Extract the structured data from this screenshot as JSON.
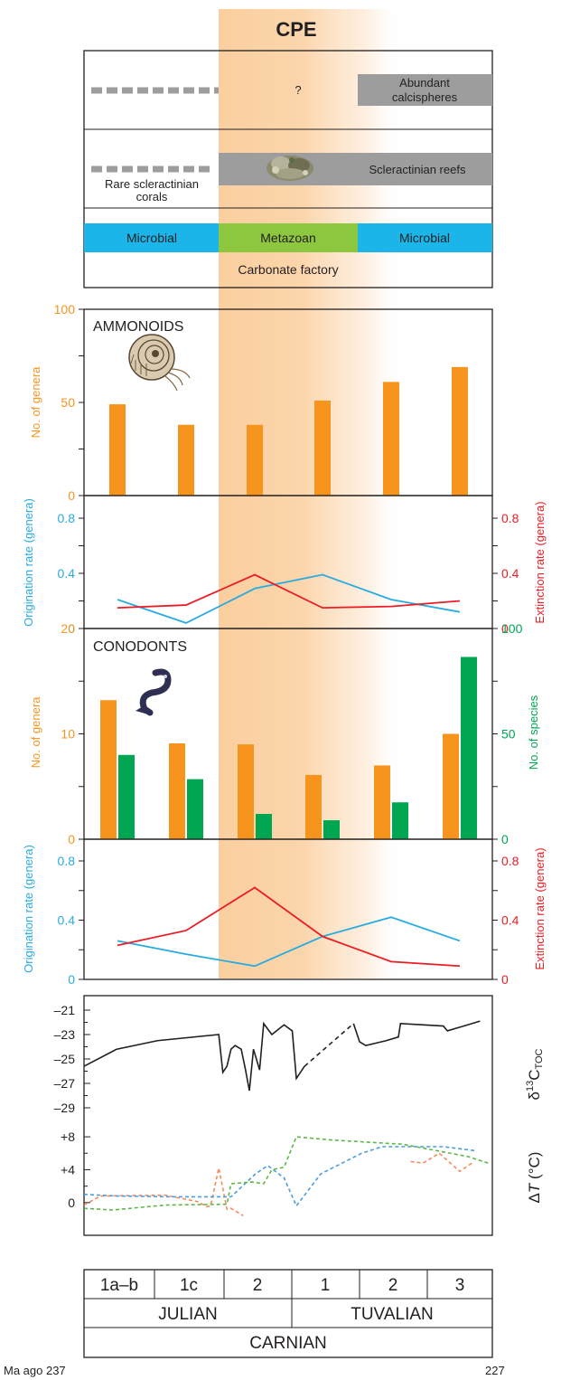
{
  "title": "CPE",
  "colors": {
    "orange": "#f7941d",
    "green": "#00a651",
    "blue": "#29abe2",
    "red": "#ed1c24",
    "black": "#231f20",
    "gray": "#9d9d9d",
    "microbial": "#1cb5ea",
    "metazoan": "#8dc63f",
    "cpe_band": "#fbd5ad",
    "temp_orange": "#f7895a",
    "temp_blue": "#4a9fe0",
    "temp_green": "#5cb847"
  },
  "legend_panel": {
    "calcispheres_question": "?",
    "calcispheres_label_1": "Abundant",
    "calcispheres_label_2": "calcispheres",
    "rare_corals_1": "Rare scleractinian",
    "rare_corals_2": "corals",
    "reefs_label": "Scleractinian reefs",
    "microbial_left": "Microbial",
    "metazoan": "Metazoan",
    "microbial_right": "Microbial",
    "carbonate_factory": "Carbonate factory"
  },
  "chart_data": [
    {
      "type": "bar",
      "title": "AMMONOIDS",
      "ylabel": "No. of genera",
      "ylim": [
        0,
        100
      ],
      "yticks": [
        0,
        50,
        100
      ],
      "categories": [
        "1a–b",
        "1c",
        "2",
        "1",
        "2",
        "3"
      ],
      "series": [
        {
          "values": [
            49,
            38,
            38,
            51,
            61,
            69
          ]
        }
      ]
    },
    {
      "type": "line",
      "ylabel_left": "Origination rate (genera)",
      "ylabel_right": "Extinction rate (genera)",
      "ylim": [
        0,
        0.8
      ],
      "yticks": [
        "0",
        "0.4",
        "0.8"
      ],
      "categories": [
        "1a–b",
        "1c",
        "2",
        "1",
        "2",
        "3"
      ],
      "series": [
        {
          "name": "Origination",
          "values": [
            0.21,
            0.04,
            0.29,
            0.39,
            0.21,
            0.12
          ]
        },
        {
          "name": "Extinction",
          "values": [
            0.15,
            0.17,
            0.39,
            0.15,
            0.16,
            0.2
          ]
        }
      ]
    },
    {
      "type": "bar",
      "title": "CONODONTS",
      "ylabel_left": "No. of genera",
      "ylabel_right": "No. of species",
      "ylim_left": [
        0,
        20
      ],
      "ylim_right": [
        0,
        100
      ],
      "yticks_left": [
        "0",
        "10",
        "20"
      ],
      "yticks_right": [
        "0",
        "50",
        "100"
      ],
      "categories": [
        "1a–b",
        "1c",
        "2",
        "1",
        "2",
        "3"
      ],
      "series": [
        {
          "name": "genera",
          "values": [
            13.2,
            9.1,
            9.0,
            6.1,
            7.0,
            10.0
          ]
        },
        {
          "name": "species",
          "values": [
            40,
            28.5,
            12,
            9,
            17.5,
            86.5
          ]
        }
      ]
    },
    {
      "type": "line",
      "ylabel_left": "Origination rate (genera)",
      "ylabel_right": "Extinction rate (genera)",
      "ylim": [
        0,
        0.8
      ],
      "yticks": [
        "0",
        "0.4",
        "0.8"
      ],
      "categories": [
        "1a–b",
        "1c",
        "2",
        "1",
        "2",
        "3"
      ],
      "series": [
        {
          "name": "Origination",
          "values": [
            0.26,
            0.17,
            0.09,
            0.29,
            0.42,
            0.26
          ]
        },
        {
          "name": "Extinction",
          "values": [
            0.23,
            0.33,
            0.62,
            0.29,
            0.12,
            0.09
          ]
        }
      ]
    },
    {
      "type": "line",
      "ylabel": "δ13C TOC",
      "ylabel_main": "δ",
      "ylabel_sup": "13",
      "ylabel_c": "C",
      "ylabel_sub": "TOC",
      "ylim": [
        -29,
        -21
      ],
      "yticks": [
        "–21",
        "–23",
        "–25",
        "–27",
        "–29"
      ],
      "xlim": [
        237,
        227
      ],
      "series": [
        {
          "style": "solid",
          "points": [
            [
              237,
              -25.6
            ],
            [
              236.2,
              -24.2
            ],
            [
              235.2,
              -23.5
            ],
            [
              233.7,
              -23.0
            ],
            [
              233.6,
              -26.1
            ],
            [
              233.5,
              -25.6
            ],
            [
              233.4,
              -24.2
            ],
            [
              233.3,
              -23.9
            ],
            [
              233.15,
              -24.2
            ],
            [
              233.05,
              -25.8
            ],
            [
              232.95,
              -27.6
            ],
            [
              232.85,
              -24.2
            ],
            [
              232.7,
              -25.9
            ],
            [
              232.6,
              -22.1
            ],
            [
              232.4,
              -23.0
            ],
            [
              232.1,
              -22.2
            ],
            [
              231.9,
              -22.7
            ],
            [
              231.8,
              -26.6
            ],
            [
              231.6,
              -25.6
            ]
          ]
        },
        {
          "style": "dashed",
          "points": [
            [
              231.6,
              -25.6
            ],
            [
              230.4,
              -22.1
            ]
          ]
        },
        {
          "style": "solid",
          "points": [
            [
              230.4,
              -22.1
            ],
            [
              230.25,
              -23.6
            ],
            [
              230.1,
              -23.9
            ],
            [
              229.6,
              -23.5
            ],
            [
              229.3,
              -23.2
            ],
            [
              229.25,
              -22.1
            ],
            [
              228.2,
              -22.3
            ],
            [
              228.1,
              -22.7
            ],
            [
              227.3,
              -21.9
            ]
          ]
        }
      ]
    },
    {
      "type": "line",
      "ylabel": "ΔT (°C)",
      "ylabel_delta": "Δ",
      "ylabel_t": "T",
      "ylabel_unit": " (°C)",
      "ylim": [
        -2,
        9
      ],
      "yticks": [
        "0",
        "+4",
        "+8"
      ],
      "xlim": [
        237,
        227
      ],
      "series": [
        {
          "style": "dashed",
          "points": [
            [
              237,
              -0.3
            ],
            [
              236.6,
              0.8
            ],
            [
              235.0,
              0.9
            ],
            [
              234.4,
              0.3
            ],
            [
              234.2,
              0.1
            ],
            [
              234.0,
              -0.5
            ],
            [
              233.9,
              -0.4
            ],
            [
              233.7,
              4.2
            ],
            [
              233.5,
              -0.8
            ],
            [
              233.4,
              -0.7
            ],
            [
              233.1,
              -1.6
            ]
          ]
        },
        {
          "style": "dashed",
          "points": [
            [
              229.0,
              5.0
            ],
            [
              228.7,
              4.8
            ],
            [
              228.3,
              6.0
            ],
            [
              227.8,
              3.8
            ],
            [
              227.5,
              4.8
            ]
          ]
        },
        {
          "style": "dashed",
          "points": [
            [
              237,
              1.0
            ],
            [
              236.2,
              0.8
            ],
            [
              234.8,
              0.7
            ],
            [
              233.4,
              0.7
            ],
            [
              232.8,
              3.5
            ],
            [
              232.5,
              4.5
            ],
            [
              232.1,
              3.0
            ],
            [
              231.8,
              -0.4
            ],
            [
              231.2,
              3.5
            ],
            [
              230.2,
              6.0
            ],
            [
              229.7,
              6.8
            ],
            [
              228.2,
              6.8
            ],
            [
              227.4,
              6.3
            ]
          ]
        },
        {
          "style": "dashed",
          "points": [
            [
              237,
              -0.7
            ],
            [
              236.3,
              -0.9
            ],
            [
              235.0,
              -0.3
            ],
            [
              233.5,
              -0.2
            ],
            [
              233.4,
              2.3
            ],
            [
              232.9,
              2.5
            ],
            [
              232.6,
              2.3
            ],
            [
              232.4,
              4.0
            ],
            [
              232.1,
              4.3
            ],
            [
              231.8,
              8.0
            ],
            [
              230.9,
              7.6
            ],
            [
              229.2,
              7.1
            ],
            [
              227.6,
              5.6
            ],
            [
              227.1,
              4.8
            ]
          ]
        }
      ]
    }
  ],
  "stages": {
    "substages": [
      "1a–b",
      "1c",
      "2",
      "1",
      "2",
      "3"
    ],
    "julian": "JULIAN",
    "tuvalian": "TUVALIAN",
    "carnian": "CARNIAN"
  },
  "time_axis": {
    "left_label": "Ma ago 237",
    "right_label": "227"
  }
}
